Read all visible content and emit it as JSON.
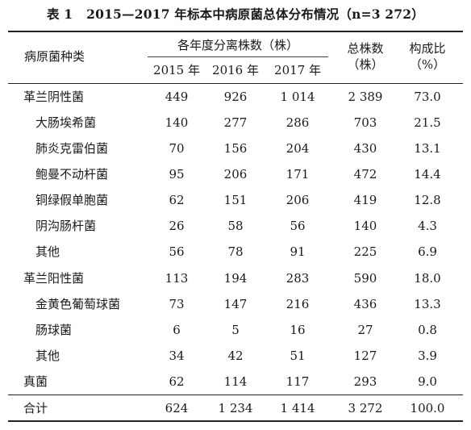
{
  "caption": {
    "label": "表 1",
    "text": "2015—2017 年标本中病原菌总体分布情况（n=3 272）"
  },
  "header": {
    "species": "病原菌种类",
    "group": "各年度分离株数（株）",
    "years": [
      "2015 年",
      "2016 年",
      "2017 年"
    ],
    "total_line1": "总株数",
    "total_line2": "（株）",
    "ratio_line1": "构成比",
    "ratio_line2": "（%）"
  },
  "rows": [
    {
      "name": "革兰阴性菌",
      "indent": false,
      "y2015": "449",
      "y2016": "926",
      "y2017": "1 014",
      "total": "2 389",
      "ratio": "73.0"
    },
    {
      "name": "大肠埃希菌",
      "indent": true,
      "y2015": "140",
      "y2016": "277",
      "y2017": "286",
      "total": "703",
      "ratio": "21.5"
    },
    {
      "name": "肺炎克雷伯菌",
      "indent": true,
      "y2015": "70",
      "y2016": "156",
      "y2017": "204",
      "total": "430",
      "ratio": "13.1"
    },
    {
      "name": "鲍曼不动杆菌",
      "indent": true,
      "y2015": "95",
      "y2016": "206",
      "y2017": "171",
      "total": "472",
      "ratio": "14.4"
    },
    {
      "name": "铜绿假单胞菌",
      "indent": true,
      "y2015": "62",
      "y2016": "151",
      "y2017": "206",
      "total": "419",
      "ratio": "12.8"
    },
    {
      "name": "阴沟肠杆菌",
      "indent": true,
      "y2015": "26",
      "y2016": "58",
      "y2017": "56",
      "total": "140",
      "ratio": "4.3"
    },
    {
      "name": "其他",
      "indent": true,
      "y2015": "56",
      "y2016": "78",
      "y2017": "91",
      "total": "225",
      "ratio": "6.9"
    },
    {
      "name": "革兰阳性菌",
      "indent": false,
      "y2015": "113",
      "y2016": "194",
      "y2017": "283",
      "total": "590",
      "ratio": "18.0"
    },
    {
      "name": "金黄色葡萄球菌",
      "indent": true,
      "y2015": "73",
      "y2016": "147",
      "y2017": "216",
      "total": "436",
      "ratio": "13.3"
    },
    {
      "name": "肠球菌",
      "indent": true,
      "y2015": "6",
      "y2016": "5",
      "y2017": "16",
      "total": "27",
      "ratio": "0.8"
    },
    {
      "name": "其他",
      "indent": true,
      "y2015": "34",
      "y2016": "42",
      "y2017": "51",
      "total": "127",
      "ratio": "3.9"
    },
    {
      "name": "真菌",
      "indent": false,
      "y2015": "62",
      "y2016": "114",
      "y2017": "117",
      "total": "293",
      "ratio": "9.0"
    },
    {
      "name": "合计",
      "indent": false,
      "y2015": "624",
      "y2016": "1 234",
      "y2017": "1 414",
      "total": "3 272",
      "ratio": "100.0"
    }
  ]
}
